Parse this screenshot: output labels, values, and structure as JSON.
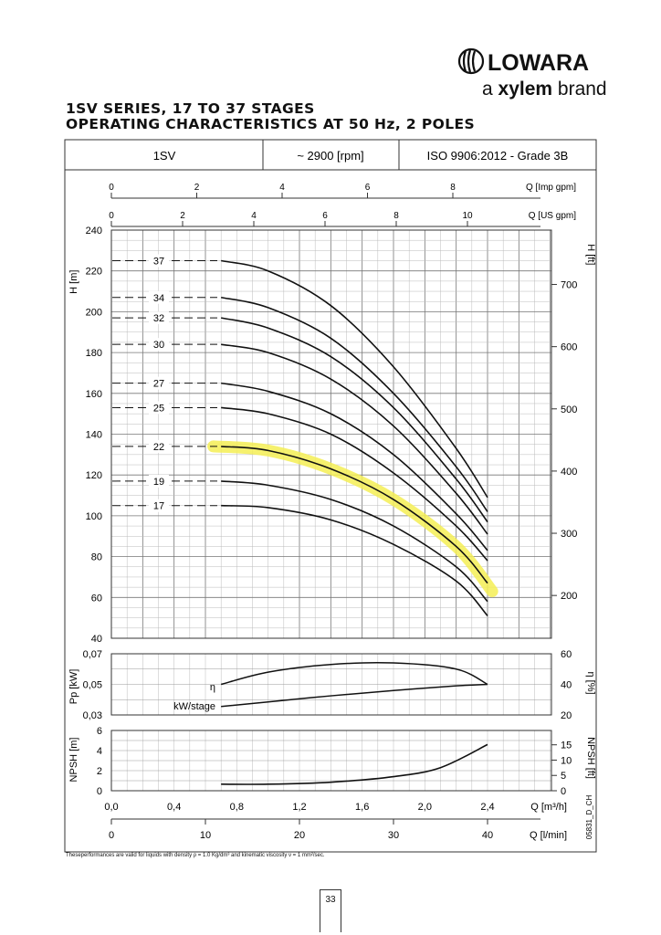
{
  "brand": {
    "logo_text": "LOWARA",
    "tagline_prefix": "a ",
    "tagline_brand": "xylem",
    "tagline_suffix": " brand"
  },
  "title_line1": "1SV SERIES, 17 TO 37 STAGES",
  "title_line2": "OPERATING CHARACTERISTICS AT 50 Hz, 2 POLES",
  "header_cells": [
    "1SV",
    "~ 2900 [rpm]",
    "ISO 9906:2012 - Grade 3B"
  ],
  "footnote": "Theseperformances are valid for liquids with density ρ = 1.0 Kg/dm³ and kinematic viscosity ν = 1 mm²/sec.",
  "page_number": "33",
  "drawing_code": "05831_D_CH",
  "chart_data": {
    "type": "line",
    "x_axis": {
      "label": "Q [m³/h]",
      "range": [
        0,
        2.8
      ],
      "ticks": [
        "0,0",
        "0,4",
        "0,8",
        "1,2",
        "1,6",
        "2,0",
        "2,4"
      ]
    },
    "secondary_x_axes": [
      {
        "label": "Q [Imp gpm]",
        "ticks": [
          "0",
          "2",
          "4",
          "6",
          "8"
        ]
      },
      {
        "label": "Q [US gpm]",
        "ticks": [
          "0",
          "2",
          "4",
          "6",
          "8",
          "10"
        ]
      },
      {
        "label": "Q [l/min]",
        "ticks": [
          "0",
          "10",
          "20",
          "30",
          "40"
        ]
      }
    ],
    "head_panel": {
      "ylabel": "H [m]",
      "ylim": [
        40,
        240
      ],
      "yticks": [
        40,
        60,
        80,
        100,
        120,
        140,
        160,
        180,
        200,
        220,
        240
      ],
      "right_label": "H [ft]",
      "right_ticks": [
        200,
        300,
        400,
        500,
        600,
        700
      ],
      "series": [
        {
          "name": "37",
          "q": [
            0.7,
            1.0,
            1.4,
            1.8,
            2.2,
            2.4
          ],
          "h": [
            225,
            220,
            203,
            173,
            133,
            109
          ]
        },
        {
          "name": "34",
          "q": [
            0.7,
            1.0,
            1.4,
            1.8,
            2.2,
            2.4
          ],
          "h": [
            207,
            202,
            187,
            160,
            124,
            102
          ]
        },
        {
          "name": "32",
          "q": [
            0.7,
            1.0,
            1.4,
            1.8,
            2.2,
            2.4
          ],
          "h": [
            197,
            192,
            178,
            153,
            118,
            97
          ]
        },
        {
          "name": "30",
          "q": [
            0.7,
            1.0,
            1.4,
            1.8,
            2.2,
            2.4
          ],
          "h": [
            184,
            180,
            167,
            144,
            111,
            91
          ]
        },
        {
          "name": "27",
          "q": [
            0.7,
            1.0,
            1.4,
            1.8,
            2.2,
            2.4
          ],
          "h": [
            165,
            161,
            150,
            130,
            101,
            83
          ]
        },
        {
          "name": "25",
          "q": [
            0.7,
            1.0,
            1.4,
            1.8,
            2.2,
            2.4
          ],
          "h": [
            153,
            150,
            140,
            121,
            95,
            78
          ]
        },
        {
          "name": "22",
          "q": [
            0.7,
            1.0,
            1.4,
            1.8,
            2.2,
            2.4
          ],
          "h": [
            134,
            132,
            123,
            108,
            85,
            67
          ]
        },
        {
          "name": "19",
          "q": [
            0.7,
            1.0,
            1.4,
            1.8,
            2.2,
            2.4
          ],
          "h": [
            117,
            115,
            108,
            95,
            75,
            58
          ]
        },
        {
          "name": "17",
          "q": [
            0.7,
            1.0,
            1.4,
            1.8,
            2.2,
            2.4
          ],
          "h": [
            105,
            104,
            98,
            86,
            68,
            51
          ]
        }
      ],
      "highlighted": {
        "name": "22",
        "q": [
          0.65,
          1.0,
          1.4,
          1.8,
          2.2,
          2.43
        ],
        "h": [
          134,
          132,
          123,
          108,
          85,
          63
        ]
      }
    },
    "power_panel": {
      "ylabel": "Pp [kW]",
      "ylim": [
        0.03,
        0.07
      ],
      "yticks": [
        "0,03",
        "0,05",
        "0,07"
      ],
      "right_label": "η [%]",
      "right_ticks": [
        20,
        40,
        60
      ],
      "eta": {
        "label": "η",
        "q": [
          0.7,
          1.0,
          1.4,
          1.8,
          2.2,
          2.4
        ],
        "pct": [
          40,
          48,
          53,
          54,
          50,
          40
        ]
      },
      "kw_per_stage": {
        "label": "kW/stage",
        "q": [
          0.7,
          1.0,
          1.4,
          1.8,
          2.2,
          2.4
        ],
        "kw": [
          0.0355,
          0.0385,
          0.0425,
          0.046,
          0.049,
          0.05
        ]
      }
    },
    "npsh_panel": {
      "ylabel": "NPSH [m]",
      "ylim": [
        0,
        6
      ],
      "yticks": [
        0,
        2,
        4,
        6
      ],
      "right_label": "NPSH [ft]",
      "right_ticks": [
        0,
        5,
        10,
        15
      ],
      "curve": {
        "q": [
          0.7,
          1.0,
          1.4,
          1.8,
          2.1,
          2.4
        ],
        "npsh": [
          0.65,
          0.65,
          0.85,
          1.4,
          2.3,
          4.6
        ]
      }
    }
  }
}
